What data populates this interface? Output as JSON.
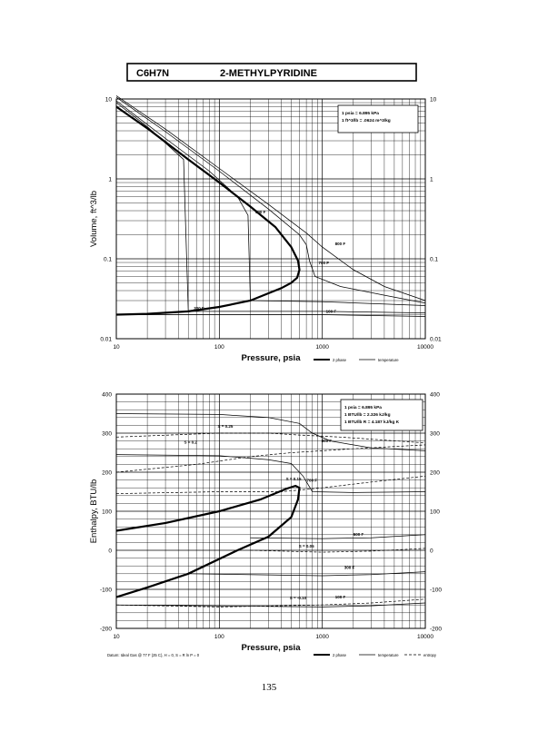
{
  "header": {
    "formula": "C6H7N",
    "name": "2-METHYLPYRIDINE"
  },
  "page_number": "135",
  "chart_data": [
    {
      "type": "line",
      "xscale": "log",
      "yscale": "log",
      "xlim": [
        10,
        10000
      ],
      "ylim": [
        0.01,
        10
      ],
      "xlabel": "Pressure,  psia",
      "ylabel": "Volume, ft^3/lb",
      "x_ticks": [
        "10",
        "100",
        "1000",
        "10000"
      ],
      "y_ticks_left": [
        "0.01",
        "0.1",
        "1",
        "10"
      ],
      "y_ticks_right": [
        "0.01",
        "0.1",
        "1",
        "10"
      ],
      "grid": true,
      "conversion_box": [
        "1 psia = 6.895 kPa",
        "1 ft^3/lb = .0624 m^3/kg"
      ],
      "legend": [
        {
          "label": "2 phase",
          "style": "thick"
        },
        {
          "label": "temperature",
          "style": "thin"
        }
      ],
      "series": [
        {
          "kind": "two_phase",
          "points": [
            [
              10,
              8.0
            ],
            [
              20,
              4.3
            ],
            [
              50,
              1.75
            ],
            [
              100,
              0.9
            ],
            [
              200,
              0.45
            ],
            [
              350,
              0.25
            ],
            [
              500,
              0.14
            ],
            [
              580,
              0.095
            ],
            [
              600,
              0.073
            ],
            [
              570,
              0.058
            ],
            [
              500,
              0.05
            ],
            [
              400,
              0.043
            ],
            [
              200,
              0.03
            ],
            [
              100,
              0.025
            ],
            [
              50,
              0.022
            ],
            [
              20,
              0.0205
            ],
            [
              10,
              0.02
            ]
          ]
        },
        {
          "name": "800 F",
          "kind": "temperature",
          "points": [
            [
              10,
              11
            ],
            [
              30,
              4.2
            ],
            [
              100,
              1.35
            ],
            [
              300,
              0.48
            ],
            [
              700,
              0.21
            ],
            [
              1000,
              0.14
            ],
            [
              2000,
              0.073
            ],
            [
              4000,
              0.045
            ],
            [
              10000,
              0.03
            ]
          ]
        },
        {
          "name": "700 F",
          "kind": "temperature",
          "points": [
            [
              10,
              10.5
            ],
            [
              30,
              3.9
            ],
            [
              100,
              1.25
            ],
            [
              300,
              0.42
            ],
            [
              600,
              0.2
            ],
            [
              700,
              0.15
            ],
            [
              750,
              0.095
            ],
            [
              850,
              0.06
            ],
            [
              1500,
              0.045
            ],
            [
              4000,
              0.035
            ],
            [
              10000,
              0.028
            ]
          ]
        },
        {
          "name": "500 F",
          "kind": "temperature",
          "points": [
            [
              10,
              9.5
            ],
            [
              30,
              3.2
            ],
            [
              80,
              1.25
            ],
            [
              150,
              0.6
            ],
            [
              190,
              0.35
            ],
            [
              200,
              0.03
            ],
            [
              1000,
              0.029
            ],
            [
              10000,
              0.026
            ]
          ]
        },
        {
          "name": "300 F",
          "kind": "temperature",
          "points": [
            [
              10,
              9.0
            ],
            [
              20,
              4.5
            ],
            [
              45,
              1.75
            ],
            [
              50,
              0.022
            ],
            [
              1000,
              0.022
            ],
            [
              10000,
              0.021
            ]
          ]
        },
        {
          "name": "100 F",
          "kind": "temperature",
          "points": [
            [
              10,
              0.02
            ],
            [
              1000,
              0.02
            ],
            [
              10000,
              0.019
            ]
          ]
        }
      ],
      "annotations": [
        "800 F",
        "700 F",
        "500 F",
        "300 F",
        "100 F"
      ]
    },
    {
      "type": "line",
      "xscale": "log",
      "xlim": [
        10,
        10000
      ],
      "ylim": [
        -200,
        400
      ],
      "xlabel": "Pressure,  psia",
      "ylabel": "Enthalpy, BTU/lb",
      "x_ticks": [
        "10",
        "100",
        "1000",
        "10000"
      ],
      "y_ticks_left": [
        "-200",
        "-100",
        "0",
        "100",
        "200",
        "300",
        "400"
      ],
      "y_ticks_right": [
        "-200",
        "-100",
        "0",
        "100",
        "200",
        "300",
        "400"
      ],
      "grid": true,
      "conversion_box": [
        "1 psia = 6.895 kPa",
        "1 BTU/lb = 2.326 kJ/kg",
        "1 BTU/lb R = 4.187 kJ/kg K"
      ],
      "footnote": "Datum: Ideal Gas @ 77 F (25 C), H = 0, S = R ln P = 0",
      "legend": [
        {
          "label": "2 phase",
          "style": "thick"
        },
        {
          "label": "temperature",
          "style": "thin"
        },
        {
          "label": "entropy",
          "style": "dashed"
        }
      ],
      "series": [
        {
          "kind": "two_phase",
          "points": [
            [
              10,
              50
            ],
            [
              30,
              70
            ],
            [
              100,
              100
            ],
            [
              250,
              130
            ],
            [
              450,
              158
            ],
            [
              550,
              165
            ],
            [
              600,
              160
            ],
            [
              580,
              130
            ],
            [
              500,
              85
            ],
            [
              300,
              35
            ],
            [
              150,
              0
            ],
            [
              50,
              -60
            ],
            [
              20,
              -95
            ],
            [
              10,
              -120
            ]
          ]
        },
        {
          "name": "800 F",
          "kind": "temperature",
          "points": [
            [
              10,
              350
            ],
            [
              100,
              348
            ],
            [
              300,
              340
            ],
            [
              600,
              325
            ],
            [
              800,
              300
            ],
            [
              1200,
              280
            ],
            [
              3000,
              262
            ],
            [
              10000,
              255
            ]
          ]
        },
        {
          "name": "700 F",
          "kind": "temperature",
          "points": [
            [
              10,
              245
            ],
            [
              100,
              242
            ],
            [
              300,
              232
            ],
            [
              500,
              222
            ],
            [
              650,
              190
            ],
            [
              800,
              150
            ],
            [
              2000,
              148
            ],
            [
              10000,
              150
            ]
          ]
        },
        {
          "name": "500 F",
          "kind": "temperature",
          "points": [
            [
              200,
              32
            ],
            [
              1000,
              30
            ],
            [
              3000,
              32
            ],
            [
              10000,
              40
            ]
          ]
        },
        {
          "name": "300 F",
          "kind": "temperature",
          "points": [
            [
              50,
              -60
            ],
            [
              1000,
              -65
            ],
            [
              3000,
              -62
            ],
            [
              10000,
              -55
            ]
          ]
        },
        {
          "name": "100 F",
          "kind": "temperature",
          "points": [
            [
              10,
              -140
            ],
            [
              1000,
              -145
            ],
            [
              3000,
              -142
            ],
            [
              10000,
              -135
            ]
          ]
        },
        {
          "name": "S = 0.25",
          "kind": "entropy",
          "points": [
            [
              10,
              290
            ],
            [
              100,
              300
            ],
            [
              300,
              300
            ],
            [
              600,
              295
            ],
            [
              1500,
              290
            ],
            [
              10000,
              275
            ]
          ]
        },
        {
          "name": "S = 0.2",
          "kind": "entropy",
          "points": [
            [
              10,
              200
            ],
            [
              60,
              220
            ],
            [
              200,
              240
            ],
            [
              500,
              250
            ],
            [
              2000,
              260
            ],
            [
              10000,
              270
            ]
          ]
        },
        {
          "name": "S = 0.15",
          "kind": "entropy",
          "points": [
            [
              10,
              145
            ],
            [
              100,
              150
            ],
            [
              400,
              150
            ],
            [
              1000,
              160
            ],
            [
              3000,
              175
            ],
            [
              10000,
              190
            ]
          ]
        },
        {
          "name": "S = 0.05",
          "kind": "entropy",
          "points": [
            [
              200,
              0
            ],
            [
              1000,
              -5
            ],
            [
              3000,
              -2
            ],
            [
              10000,
              5
            ]
          ]
        },
        {
          "name": "S = -0.10",
          "kind": "entropy",
          "points": [
            [
              10,
              -140
            ],
            [
              100,
              -145
            ],
            [
              1000,
              -140
            ],
            [
              3000,
              -135
            ],
            [
              10000,
              -125
            ]
          ]
        }
      ],
      "annotations": [
        "800 F",
        "700 F",
        "500 F",
        "300 F",
        "100 F",
        "S = 0.25",
        "S = 0.2",
        "S = 0.15",
        "S = 0.05",
        "S = -0.10"
      ]
    }
  ]
}
